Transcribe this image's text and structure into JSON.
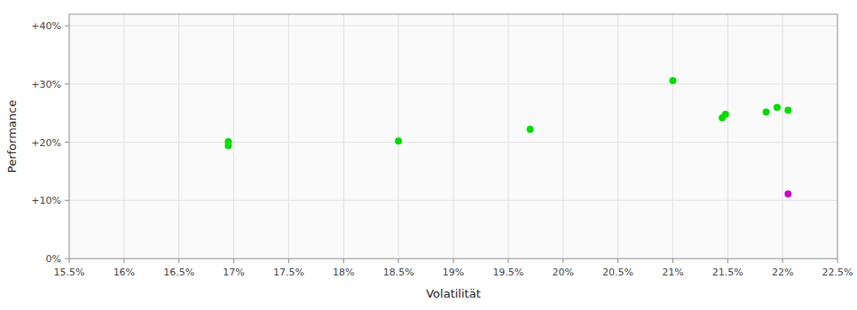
{
  "chart_data": {
    "type": "scatter",
    "xlabel": "Volatilität",
    "ylabel": "Performance",
    "xlim": [
      0.155,
      0.225
    ],
    "ylim": [
      0.0,
      0.42
    ],
    "xticks": [
      {
        "value": 0.155,
        "label": "15.5%"
      },
      {
        "value": 0.16,
        "label": "16%"
      },
      {
        "value": 0.165,
        "label": "16.5%"
      },
      {
        "value": 0.17,
        "label": "17%"
      },
      {
        "value": 0.175,
        "label": "17.5%"
      },
      {
        "value": 0.18,
        "label": "18%"
      },
      {
        "value": 0.185,
        "label": "18.5%"
      },
      {
        "value": 0.19,
        "label": "19%"
      },
      {
        "value": 0.195,
        "label": "19.5%"
      },
      {
        "value": 0.2,
        "label": "20%"
      },
      {
        "value": 0.205,
        "label": "20.5%"
      },
      {
        "value": 0.21,
        "label": "21%"
      },
      {
        "value": 0.215,
        "label": "21.5%"
      },
      {
        "value": 0.22,
        "label": "22%"
      },
      {
        "value": 0.225,
        "label": "22.5%"
      }
    ],
    "yticks": [
      {
        "value": 0.0,
        "label": "0%"
      },
      {
        "value": 0.1,
        "label": "+10%"
      },
      {
        "value": 0.2,
        "label": "+20%"
      },
      {
        "value": 0.3,
        "label": "+30%"
      },
      {
        "value": 0.4,
        "label": "+40%"
      }
    ],
    "grid": true,
    "series": [
      {
        "color": "#00dd00",
        "x": [
          0.1695,
          0.1695,
          0.185,
          0.197,
          0.21,
          0.2145,
          0.2148,
          0.2185,
          0.2195,
          0.2205
        ],
        "values": [
          0.201,
          0.194,
          0.202,
          0.222,
          0.306,
          0.242,
          0.248,
          0.252,
          0.26,
          0.255
        ]
      },
      {
        "color": "#cc00cc",
        "x": [
          0.2205
        ],
        "values": [
          0.111
        ]
      }
    ]
  }
}
